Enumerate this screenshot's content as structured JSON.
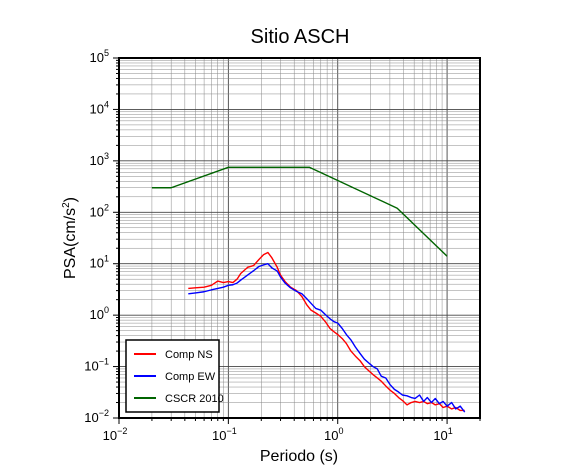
{
  "chart_data": {
    "type": "line",
    "title": "Sitio ASCH",
    "xlabel": "Periodo (s)",
    "ylabel_base": "PSA(cm/s",
    "ylabel_sup": "2",
    "ylabel_end": ")",
    "xscale": "log",
    "yscale": "log",
    "xlim": [
      0.01,
      20
    ],
    "ylim": [
      0.01,
      100000
    ],
    "grid": true,
    "legend_position": "bottom-left",
    "x_ticks": [
      {
        "base": "10",
        "exp": "−2",
        "value": 0.01
      },
      {
        "base": "10",
        "exp": "−1",
        "value": 0.1
      },
      {
        "base": "10",
        "exp": "0",
        "value": 1
      },
      {
        "base": "10",
        "exp": "1",
        "value": 10
      }
    ],
    "y_ticks": [
      {
        "base": "10",
        "exp": "−2",
        "value": 0.01
      },
      {
        "base": "10",
        "exp": "−1",
        "value": 0.1
      },
      {
        "base": "10",
        "exp": "0",
        "value": 1
      },
      {
        "base": "10",
        "exp": "1",
        "value": 10
      },
      {
        "base": "10",
        "exp": "2",
        "value": 100
      },
      {
        "base": "10",
        "exp": "3",
        "value": 1000
      },
      {
        "base": "10",
        "exp": "4",
        "value": 10000
      },
      {
        "base": "10",
        "exp": "5",
        "value": 100000
      }
    ],
    "series": [
      {
        "name": "Comp NS",
        "color": "#ff0000",
        "points": [
          [
            0.043,
            3.3
          ],
          [
            0.05,
            3.4
          ],
          [
            0.06,
            3.5
          ],
          [
            0.07,
            3.8
          ],
          [
            0.08,
            4.6
          ],
          [
            0.09,
            4.3
          ],
          [
            0.1,
            4.5
          ],
          [
            0.11,
            4.3
          ],
          [
            0.12,
            5.0
          ],
          [
            0.13,
            6.5
          ],
          [
            0.15,
            8.5
          ],
          [
            0.17,
            9.2
          ],
          [
            0.19,
            12.0
          ],
          [
            0.21,
            15.0
          ],
          [
            0.23,
            16.5
          ],
          [
            0.25,
            13.0
          ],
          [
            0.28,
            8.5
          ],
          [
            0.3,
            6.0
          ],
          [
            0.33,
            4.5
          ],
          [
            0.37,
            3.5
          ],
          [
            0.42,
            3.0
          ],
          [
            0.47,
            2.3
          ],
          [
            0.52,
            1.6
          ],
          [
            0.57,
            1.25
          ],
          [
            0.63,
            1.1
          ],
          [
            0.7,
            0.95
          ],
          [
            0.78,
            0.72
          ],
          [
            0.85,
            0.55
          ],
          [
            0.92,
            0.48
          ],
          [
            1.0,
            0.42
          ],
          [
            1.1,
            0.35
          ],
          [
            1.2,
            0.28
          ],
          [
            1.32,
            0.2
          ],
          [
            1.45,
            0.16
          ],
          [
            1.6,
            0.13
          ],
          [
            1.75,
            0.1
          ],
          [
            1.9,
            0.085
          ],
          [
            2.1,
            0.07
          ],
          [
            2.3,
            0.06
          ],
          [
            2.5,
            0.052
          ],
          [
            2.75,
            0.042
          ],
          [
            3.0,
            0.035
          ],
          [
            3.3,
            0.03
          ],
          [
            3.6,
            0.025
          ],
          [
            3.9,
            0.022
          ],
          [
            4.3,
            0.018
          ],
          [
            4.7,
            0.02
          ],
          [
            5.1,
            0.021
          ],
          [
            5.6,
            0.02
          ],
          [
            6.1,
            0.021
          ],
          [
            6.6,
            0.019
          ],
          [
            7.2,
            0.02
          ],
          [
            7.8,
            0.018
          ],
          [
            8.5,
            0.019
          ],
          [
            9.2,
            0.016
          ],
          [
            10.0,
            0.017
          ],
          [
            11.0,
            0.015
          ],
          [
            12.0,
            0.016
          ],
          [
            13.2,
            0.014
          ],
          [
            14.5,
            0.014
          ]
        ]
      },
      {
        "name": "Comp EW",
        "color": "#0000ff",
        "points": [
          [
            0.043,
            2.6
          ],
          [
            0.05,
            2.7
          ],
          [
            0.06,
            2.85
          ],
          [
            0.07,
            3.1
          ],
          [
            0.08,
            3.3
          ],
          [
            0.09,
            3.5
          ],
          [
            0.1,
            3.8
          ],
          [
            0.11,
            3.9
          ],
          [
            0.12,
            4.2
          ],
          [
            0.13,
            4.8
          ],
          [
            0.15,
            6.0
          ],
          [
            0.17,
            7.3
          ],
          [
            0.19,
            8.8
          ],
          [
            0.21,
            9.5
          ],
          [
            0.23,
            10.0
          ],
          [
            0.25,
            8.3
          ],
          [
            0.28,
            7.2
          ],
          [
            0.3,
            5.5
          ],
          [
            0.33,
            4.2
          ],
          [
            0.37,
            3.4
          ],
          [
            0.42,
            2.9
          ],
          [
            0.47,
            2.6
          ],
          [
            0.52,
            2.1
          ],
          [
            0.57,
            1.7
          ],
          [
            0.63,
            1.35
          ],
          [
            0.7,
            1.25
          ],
          [
            0.78,
            1.0
          ],
          [
            0.85,
            0.85
          ],
          [
            0.92,
            0.75
          ],
          [
            1.0,
            0.7
          ],
          [
            1.1,
            0.55
          ],
          [
            1.2,
            0.42
          ],
          [
            1.32,
            0.33
          ],
          [
            1.45,
            0.24
          ],
          [
            1.6,
            0.18
          ],
          [
            1.75,
            0.14
          ],
          [
            1.9,
            0.12
          ],
          [
            2.1,
            0.1
          ],
          [
            2.3,
            0.09
          ],
          [
            2.5,
            0.065
          ],
          [
            2.75,
            0.06
          ],
          [
            3.0,
            0.045
          ],
          [
            3.3,
            0.036
          ],
          [
            3.6,
            0.032
          ],
          [
            3.9,
            0.028
          ],
          [
            4.3,
            0.027
          ],
          [
            4.7,
            0.025
          ],
          [
            5.1,
            0.024
          ],
          [
            5.6,
            0.028
          ],
          [
            6.1,
            0.021
          ],
          [
            6.6,
            0.025
          ],
          [
            7.2,
            0.02
          ],
          [
            7.8,
            0.024
          ],
          [
            8.5,
            0.019
          ],
          [
            9.2,
            0.021
          ],
          [
            10.0,
            0.017
          ],
          [
            11.0,
            0.02
          ],
          [
            12.0,
            0.015
          ],
          [
            13.2,
            0.017
          ],
          [
            14.5,
            0.013
          ]
        ]
      },
      {
        "name": "CSCR 2010",
        "color": "#006400",
        "points": [
          [
            0.02,
            300
          ],
          [
            0.03,
            300
          ],
          [
            0.1,
            750
          ],
          [
            0.55,
            750
          ],
          [
            3.5,
            120
          ],
          [
            10.0,
            14
          ]
        ]
      }
    ]
  }
}
